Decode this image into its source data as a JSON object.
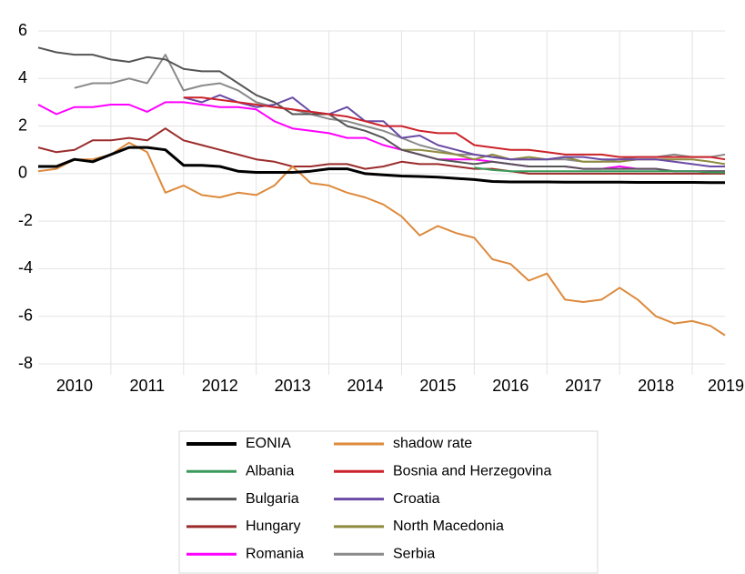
{
  "chart_data": {
    "type": "line",
    "x": [
      2010,
      2010.25,
      2010.5,
      2010.75,
      2011,
      2011.25,
      2011.5,
      2011.75,
      2012,
      2012.25,
      2012.5,
      2012.75,
      2013,
      2013.25,
      2013.5,
      2013.75,
      2014,
      2014.25,
      2014.5,
      2014.75,
      2015,
      2015.25,
      2015.5,
      2015.75,
      2016,
      2016.25,
      2016.5,
      2016.75,
      2017,
      2017.25,
      2017.5,
      2017.75,
      2018,
      2018.25,
      2018.5,
      2018.75,
      2019,
      2019.25,
      2019.45
    ],
    "xlim": [
      2010,
      2019.45
    ],
    "xticks": [
      {
        "value": 2010.5,
        "label": "2010"
      },
      {
        "value": 2011.5,
        "label": "2011"
      },
      {
        "value": 2012.5,
        "label": "2012"
      },
      {
        "value": 2013.5,
        "label": "2013"
      },
      {
        "value": 2014.5,
        "label": "2014"
      },
      {
        "value": 2015.5,
        "label": "2015"
      },
      {
        "value": 2016.5,
        "label": "2016"
      },
      {
        "value": 2017.5,
        "label": "2017"
      },
      {
        "value": 2018.5,
        "label": "2018"
      },
      {
        "value": 2019.5,
        "label": "2019"
      }
    ],
    "xgrid": [
      2011,
      2012,
      2013,
      2014,
      2015,
      2016,
      2017,
      2018,
      2019
    ],
    "ylim": [
      -8,
      6
    ],
    "yticks": [
      -8,
      -6,
      -4,
      -2,
      0,
      2,
      4,
      6
    ],
    "grid": true,
    "series": [
      {
        "name": "EONIA",
        "color": "#000000",
        "width": 3,
        "values": [
          0.3,
          0.3,
          0.6,
          0.5,
          0.8,
          1.1,
          1.1,
          1.0,
          0.35,
          0.35,
          0.3,
          0.1,
          0.05,
          0.05,
          0.05,
          0.1,
          0.2,
          0.2,
          0.0,
          -0.05,
          -0.1,
          -0.12,
          -0.15,
          -0.2,
          -0.25,
          -0.33,
          -0.35,
          -0.35,
          -0.35,
          -0.36,
          -0.36,
          -0.36,
          -0.36,
          -0.37,
          -0.37,
          -0.37,
          -0.37,
          -0.38,
          -0.38
        ]
      },
      {
        "name": "shadow rate",
        "color": "#dd8a3c",
        "width": 2,
        "values": [
          0.1,
          0.2,
          0.6,
          0.6,
          0.8,
          1.3,
          0.9,
          -0.8,
          -0.5,
          -0.9,
          -1.0,
          -0.8,
          -0.9,
          -0.5,
          0.3,
          -0.4,
          -0.5,
          -0.8,
          -1.0,
          -1.3,
          -1.8,
          -2.6,
          -2.2,
          -2.5,
          -2.7,
          -3.6,
          -3.8,
          -4.5,
          -4.2,
          -5.3,
          -5.4,
          -5.3,
          -4.8,
          -5.3,
          -6.0,
          -6.3,
          -6.2,
          -6.4,
          -6.8
        ]
      },
      {
        "name": "Albania",
        "color": "#3b9a5b",
        "width": 2,
        "values": [
          null,
          null,
          null,
          null,
          null,
          null,
          null,
          null,
          null,
          null,
          null,
          null,
          null,
          null,
          null,
          null,
          null,
          null,
          null,
          null,
          null,
          null,
          null,
          null,
          0.25,
          0.15,
          0.1,
          0.1,
          0.1,
          0.1,
          0.1,
          0.1,
          0.1,
          0.1,
          0.1,
          0.1,
          0.1,
          0.05,
          0.05
        ]
      },
      {
        "name": "Bosnia and Herzegovina",
        "color": "#cc2229",
        "width": 2,
        "values": [
          null,
          null,
          null,
          null,
          null,
          null,
          null,
          null,
          3.2,
          3.2,
          3.1,
          3.0,
          2.9,
          2.8,
          2.7,
          2.6,
          2.5,
          2.4,
          2.2,
          2.0,
          2.0,
          1.8,
          1.7,
          1.7,
          1.2,
          1.1,
          1.0,
          1.0,
          0.9,
          0.8,
          0.8,
          0.8,
          0.7,
          0.7,
          0.7,
          0.7,
          0.7,
          0.7,
          0.6
        ]
      },
      {
        "name": "Bulgaria",
        "color": "#555555",
        "width": 2,
        "values": [
          5.3,
          5.1,
          5.0,
          5.0,
          4.8,
          4.7,
          4.9,
          4.8,
          4.4,
          4.3,
          4.3,
          3.8,
          3.3,
          3.0,
          2.5,
          2.5,
          2.5,
          2.0,
          1.8,
          1.5,
          1.0,
          0.8,
          0.6,
          0.5,
          0.4,
          0.5,
          0.4,
          0.3,
          0.3,
          0.3,
          0.2,
          0.2,
          0.2,
          0.2,
          0.2,
          0.1,
          0.1,
          0.1,
          0.1
        ]
      },
      {
        "name": "Croatia",
        "color": "#6a4aa5",
        "width": 2,
        "values": [
          null,
          null,
          null,
          null,
          null,
          null,
          null,
          null,
          3.2,
          3.0,
          3.3,
          3.0,
          2.8,
          2.9,
          3.2,
          2.6,
          2.5,
          2.8,
          2.2,
          2.2,
          1.5,
          1.6,
          1.2,
          1.0,
          0.8,
          0.7,
          0.6,
          0.6,
          0.6,
          0.7,
          0.7,
          0.6,
          0.6,
          0.6,
          0.6,
          0.5,
          0.4,
          0.3,
          0.3
        ]
      },
      {
        "name": "Hungary",
        "color": "#9b2b2b",
        "width": 2,
        "values": [
          1.1,
          0.9,
          1.0,
          1.4,
          1.4,
          1.5,
          1.4,
          1.9,
          1.4,
          1.2,
          1.0,
          0.8,
          0.6,
          0.5,
          0.3,
          0.3,
          0.4,
          0.4,
          0.2,
          0.3,
          0.5,
          0.4,
          0.4,
          0.3,
          0.2,
          0.2,
          0.1,
          0.0,
          0.0,
          0.0,
          0.0,
          0.0,
          0.0,
          0.0,
          0.0,
          0.0,
          0.0,
          0.0,
          0.0
        ]
      },
      {
        "name": "North Macedonia",
        "color": "#8e8a3e",
        "width": 2,
        "values": [
          null,
          null,
          null,
          null,
          null,
          null,
          null,
          null,
          null,
          null,
          null,
          null,
          null,
          null,
          null,
          null,
          null,
          null,
          null,
          null,
          1.0,
          1.0,
          0.9,
          0.8,
          0.6,
          0.8,
          0.6,
          0.7,
          0.6,
          0.7,
          0.5,
          0.5,
          0.5,
          0.6,
          0.6,
          0.6,
          0.6,
          0.5,
          0.4
        ]
      },
      {
        "name": "Romania",
        "color": "#ff00ff",
        "width": 2,
        "values": [
          2.9,
          2.5,
          2.8,
          2.8,
          2.9,
          2.9,
          2.6,
          3.0,
          3.0,
          2.9,
          2.8,
          2.8,
          2.7,
          2.2,
          1.9,
          1.8,
          1.7,
          1.5,
          1.5,
          1.2,
          1.0,
          0.8,
          0.6,
          0.6,
          0.6,
          0.5,
          0.4,
          0.3,
          0.3,
          0.3,
          0.2,
          0.2,
          0.3,
          0.2,
          0.2,
          0.1,
          0.1,
          0.1,
          0.1
        ]
      },
      {
        "name": "Serbia",
        "color": "#8a8a8a",
        "width": 2,
        "values": [
          null,
          null,
          3.6,
          3.8,
          3.8,
          4.0,
          3.8,
          5.0,
          3.5,
          3.7,
          3.8,
          3.5,
          3.0,
          2.8,
          2.7,
          2.5,
          2.3,
          2.2,
          2.0,
          1.8,
          1.5,
          1.2,
          1.0,
          0.8,
          0.8,
          0.7,
          0.6,
          0.6,
          0.6,
          0.6,
          0.5,
          0.5,
          0.6,
          0.7,
          0.7,
          0.8,
          0.7,
          0.7,
          0.8
        ]
      }
    ]
  }
}
